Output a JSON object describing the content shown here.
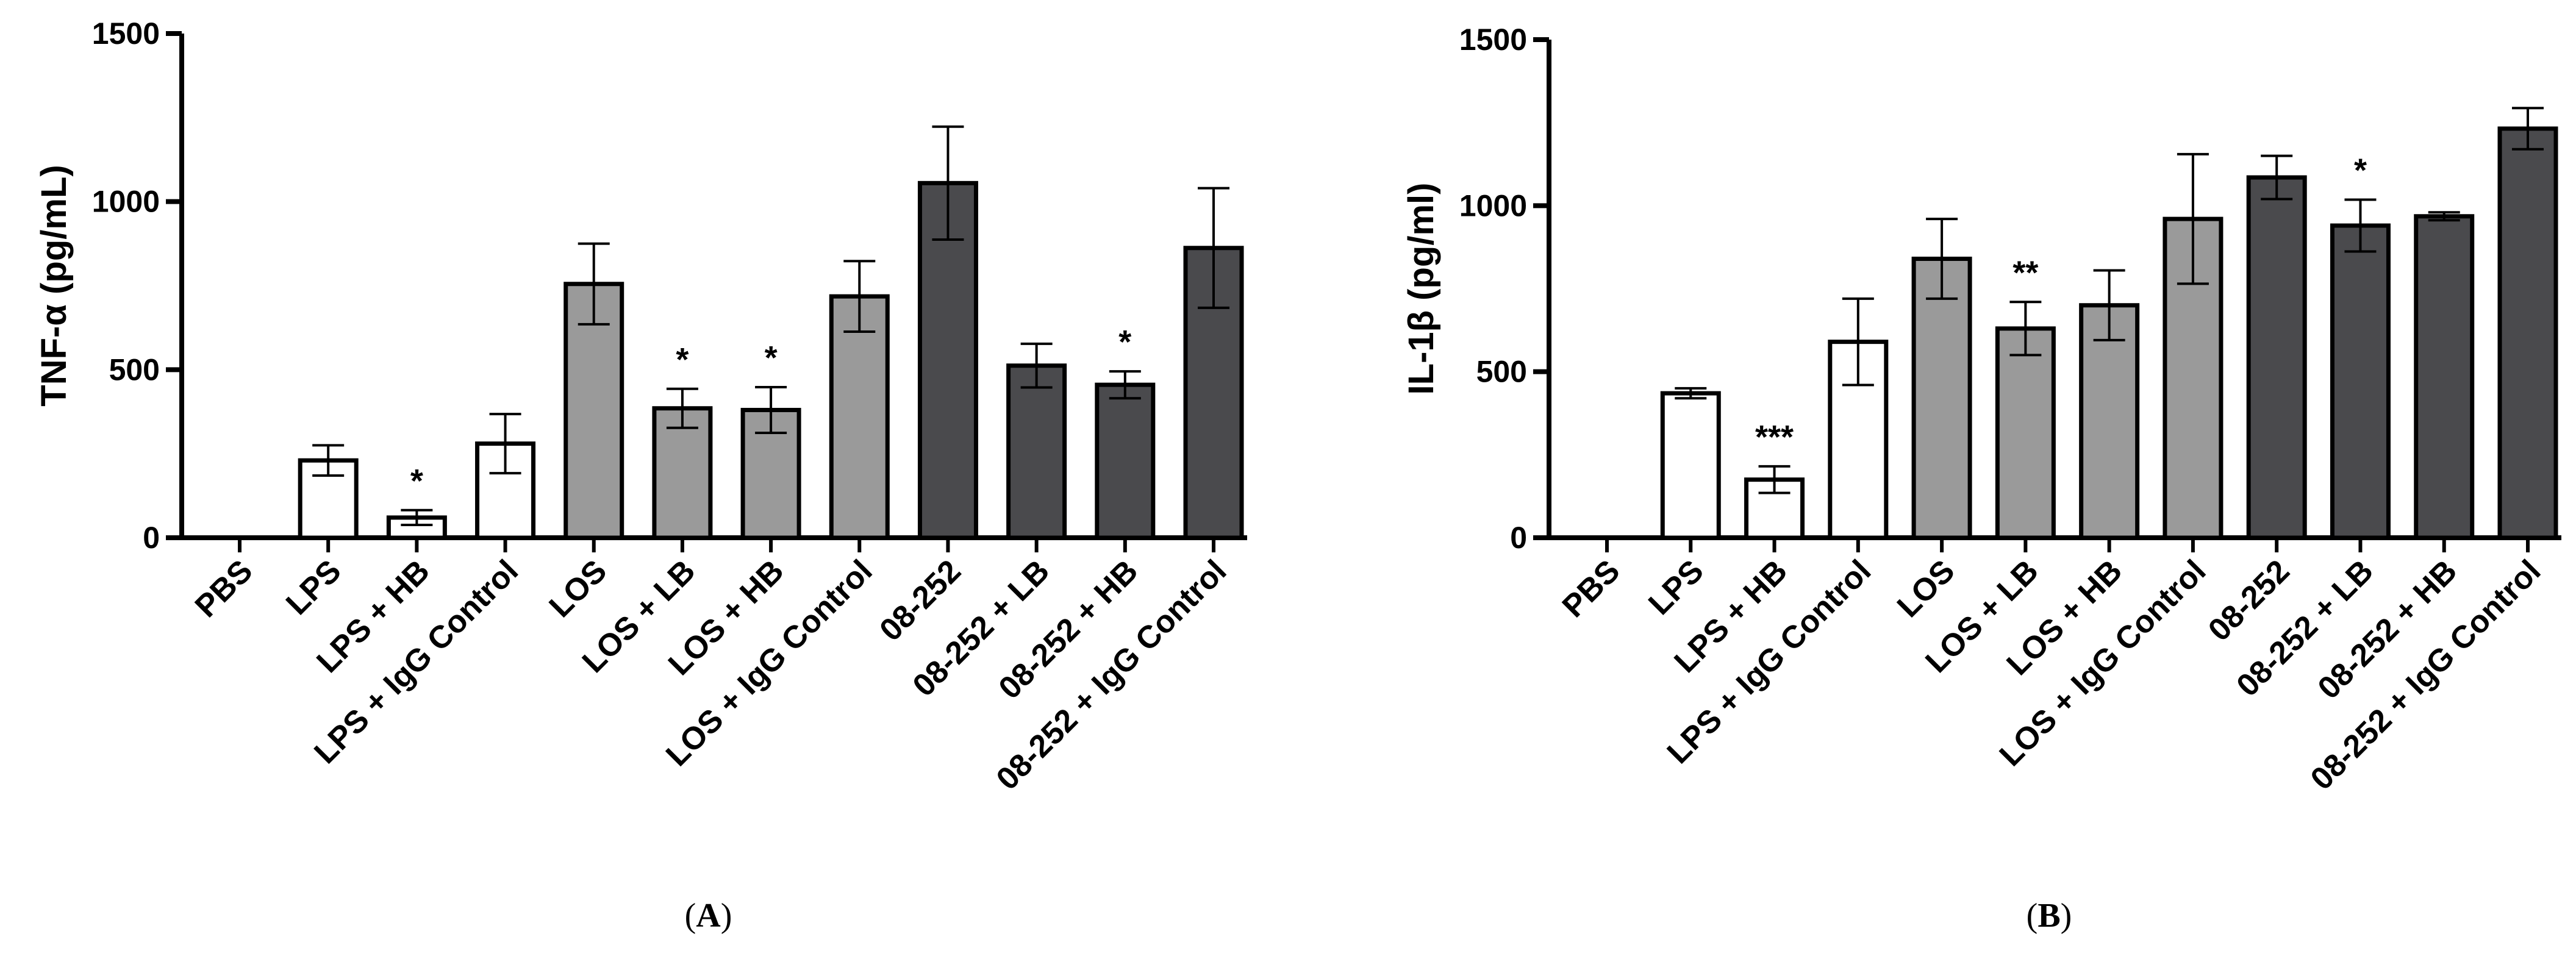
{
  "colors": {
    "axis": "#000000",
    "group_lps": "#ffffff",
    "group_los": "#9a9a9a",
    "group_08252": "#4a4a4d",
    "bar_stroke": "#000000"
  },
  "chart_data": [
    {
      "type": "bar",
      "panel_label": "A",
      "ylabel": "TNF-α (pg/mL)",
      "xlabel": "",
      "ylim": [
        0,
        1500
      ],
      "yticks": [
        0,
        500,
        1000,
        1500
      ],
      "grid": false,
      "categories": [
        "PBS",
        "LPS",
        "LPS + HB",
        "LPS + IgG Control",
        "LOS",
        "LOS + LB",
        "LOS + HB",
        "LOS + IgG Control",
        "08-252",
        "08-252 + LB",
        "08-252 + HB",
        "08-252 + IgG Control"
      ],
      "groups": [
        "none",
        "lps",
        "lps",
        "lps",
        "los",
        "los",
        "los",
        "los",
        "08252",
        "08252",
        "08252",
        "08252"
      ],
      "values": [
        0,
        230,
        60,
        280,
        755,
        385,
        380,
        718,
        1055,
        512,
        455,
        862
      ],
      "errors": [
        0,
        45,
        22,
        88,
        120,
        58,
        68,
        105,
        168,
        65,
        40,
        178
      ],
      "annotations": [
        "",
        "",
        "*",
        "",
        "",
        "*",
        "*",
        "",
        "",
        "",
        "*",
        ""
      ]
    },
    {
      "type": "bar",
      "panel_label": "B",
      "ylabel": "IL-1β (pg/ml)",
      "xlabel": "",
      "ylim": [
        0,
        1500
      ],
      "yticks": [
        0,
        500,
        1000,
        1500
      ],
      "grid": false,
      "categories": [
        "PBS",
        "LPS",
        "LPS + HB",
        "LPS + IgG Control",
        "LOS",
        "LOS + LB",
        "LOS + HB",
        "LOS + IgG Control",
        "08-252",
        "08-252 + LB",
        "08-252 + HB",
        "08-252 + IgG Control"
      ],
      "groups": [
        "none",
        "lps",
        "lps",
        "lps",
        "los",
        "los",
        "los",
        "los",
        "08252",
        "08252",
        "08252",
        "08252"
      ],
      "values": [
        0,
        435,
        175,
        590,
        840,
        630,
        700,
        960,
        1085,
        940,
        968,
        1232
      ],
      "errors": [
        0,
        15,
        40,
        130,
        120,
        80,
        105,
        195,
        65,
        78,
        12,
        62
      ],
      "annotations": [
        "",
        "",
        "***",
        "",
        "",
        "**",
        "",
        "",
        "",
        "*",
        "",
        ""
      ]
    }
  ]
}
